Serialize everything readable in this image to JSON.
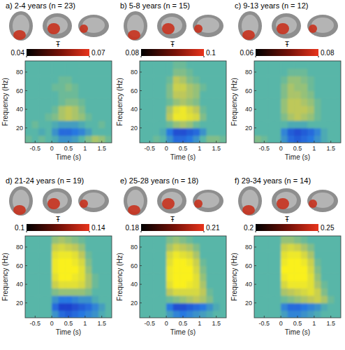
{
  "chart_data": [
    {
      "type": "heatmap",
      "title": "a) 2-4 years (n = 23)",
      "x_label": "Time (s)",
      "y_label": "Frequency (Hz)",
      "x": [
        -0.7,
        -0.5,
        -0.3,
        -0.1,
        0.1,
        0.3,
        0.5,
        0.7,
        0.9,
        1.1,
        1.3,
        1.5,
        1.7
      ],
      "y": [
        8,
        16,
        24,
        32,
        40,
        48,
        56,
        64,
        72,
        80,
        88
      ],
      "values": [
        [
          0.1,
          0,
          0.1,
          0,
          -0.1,
          -0.3,
          -0.3,
          -0.2,
          0,
          0.2,
          0.4,
          0.3,
          0.1
        ],
        [
          0,
          0,
          -0.1,
          0,
          -0.3,
          -0.6,
          -0.6,
          -0.5,
          -0.4,
          -0.2,
          0,
          0,
          0
        ],
        [
          0,
          0.1,
          0,
          0,
          -0.1,
          -0.2,
          -0.2,
          -0.2,
          -0.1,
          0,
          0,
          0.1,
          0
        ],
        [
          0,
          0,
          0,
          0.1,
          0.2,
          0.4,
          0.5,
          0.4,
          0.3,
          0.1,
          0,
          0,
          0
        ],
        [
          0,
          0,
          0,
          0,
          0.1,
          0.4,
          0.5,
          0.4,
          0.2,
          0,
          0,
          0,
          0
        ],
        [
          0,
          0,
          0,
          0,
          0,
          0.1,
          0.2,
          0.2,
          0.1,
          0,
          0,
          0,
          0
        ],
        [
          0,
          0,
          0,
          0,
          0,
          0.1,
          0.1,
          0.1,
          0,
          0,
          0,
          0,
          0
        ],
        [
          0,
          0,
          0,
          0,
          0.1,
          0.1,
          0.2,
          0.1,
          0,
          0,
          0,
          0,
          0
        ],
        [
          0,
          0,
          0,
          0,
          0,
          0.1,
          0.1,
          0,
          0,
          0,
          0,
          0,
          0
        ],
        [
          0,
          0,
          0,
          0,
          0,
          0,
          0,
          0,
          0,
          0,
          0,
          0,
          0
        ],
        [
          0,
          0,
          0,
          0,
          0,
          0,
          0,
          0,
          0,
          0,
          0,
          0,
          0
        ]
      ],
      "color_range": [
        -1,
        1
      ],
      "xlim": [
        -0.8,
        1.8
      ],
      "ylim": [
        4,
        92
      ],
      "xticks": [
        -0.5,
        0,
        0.5,
        1,
        1.5
      ],
      "yticks": [
        20,
        40,
        60,
        80
      ],
      "colorbar_label": "Ŧ",
      "colorbar_range": [
        0.04,
        0.07
      ],
      "colorbar_ticks": [
        0.04,
        0.07
      ]
    },
    {
      "type": "heatmap",
      "title": "b) 5-8 years (n = 15)",
      "x_label": "Time (s)",
      "y_label": "Frequency (Hz)",
      "x": [
        -0.7,
        -0.5,
        -0.3,
        -0.1,
        0.1,
        0.3,
        0.5,
        0.7,
        0.9,
        1.1,
        1.3,
        1.5,
        1.7
      ],
      "y": [
        8,
        16,
        24,
        32,
        40,
        48,
        56,
        64,
        72,
        80,
        88
      ],
      "values": [
        [
          0,
          0,
          0.1,
          0,
          -0.3,
          -0.6,
          -0.6,
          -0.5,
          -0.3,
          0,
          0.2,
          0.2,
          0.1
        ],
        [
          0,
          0,
          0,
          -0.1,
          -0.5,
          -0.8,
          -0.8,
          -0.7,
          -0.6,
          -0.3,
          0,
          0,
          0
        ],
        [
          0,
          0,
          0,
          0,
          0.1,
          0.3,
          0.4,
          0.3,
          0.1,
          0,
          0,
          0,
          0
        ],
        [
          0,
          0,
          0,
          0,
          0.5,
          0.9,
          0.9,
          0.8,
          0.7,
          0.2,
          0,
          0,
          0
        ],
        [
          0,
          0,
          0,
          0,
          0.4,
          0.8,
          0.9,
          0.7,
          0.5,
          0.1,
          0,
          0,
          0
        ],
        [
          0,
          0,
          0,
          0,
          0.1,
          0.3,
          0.4,
          0.3,
          0.2,
          0,
          0,
          0,
          0
        ],
        [
          0,
          0,
          0,
          0,
          0.2,
          0.5,
          0.5,
          0.4,
          0.3,
          0,
          0,
          0,
          0
        ],
        [
          0,
          0,
          0,
          0,
          0.2,
          0.6,
          0.6,
          0.4,
          0.3,
          0.1,
          0,
          0,
          0
        ],
        [
          0,
          0,
          0,
          0,
          0.1,
          0.5,
          0.4,
          0.2,
          0.1,
          0,
          0,
          0,
          0
        ],
        [
          0,
          0,
          0,
          0,
          0,
          0.2,
          0.2,
          0.1,
          0,
          0,
          0,
          0,
          0
        ],
        [
          0,
          0,
          0,
          0,
          0,
          0.1,
          0.1,
          0,
          0,
          0,
          0,
          0,
          0
        ]
      ],
      "color_range": [
        -1,
        1
      ],
      "xlim": [
        -0.8,
        1.8
      ],
      "ylim": [
        4,
        92
      ],
      "xticks": [
        -0.5,
        0,
        0.5,
        1,
        1.5
      ],
      "yticks": [
        20,
        40,
        60,
        80
      ],
      "colorbar_label": "Ŧ",
      "colorbar_range": [
        0.08,
        0.1
      ],
      "colorbar_ticks": [
        0.08,
        0.1
      ]
    },
    {
      "type": "heatmap",
      "title": "c) 9-13 years (n = 12)",
      "x_label": "Time (s)",
      "y_label": "Frequency (Hz)",
      "x": [
        -0.7,
        -0.5,
        -0.3,
        -0.1,
        0.1,
        0.3,
        0.5,
        0.7,
        0.9,
        1.1,
        1.3,
        1.5,
        1.7
      ],
      "y": [
        8,
        16,
        24,
        32,
        40,
        48,
        56,
        64,
        72,
        80,
        88
      ],
      "values": [
        [
          0.2,
          0.1,
          0,
          0,
          -0.3,
          -0.6,
          -0.7,
          -0.6,
          -0.5,
          -0.3,
          -0.1,
          0,
          0
        ],
        [
          0,
          0,
          0,
          0,
          -0.4,
          -0.7,
          -0.8,
          -0.7,
          -0.6,
          -0.4,
          -0.1,
          0,
          0
        ],
        [
          0,
          0,
          0,
          0,
          0,
          -0.1,
          -0.1,
          -0.1,
          0,
          0,
          0,
          0,
          0
        ],
        [
          0,
          0,
          0,
          0,
          0.2,
          0.4,
          0.5,
          0.4,
          0.3,
          0.1,
          0,
          0,
          0
        ],
        [
          0,
          0,
          0,
          0,
          0.3,
          0.5,
          0.5,
          0.5,
          0.4,
          0.1,
          0,
          0,
          0
        ],
        [
          0,
          0,
          0,
          0,
          0.3,
          0.5,
          0.5,
          0.4,
          0.3,
          0.1,
          0,
          0,
          0
        ],
        [
          0,
          0,
          0,
          0,
          0.2,
          0.4,
          0.4,
          0.3,
          0.2,
          0,
          0,
          0,
          0
        ],
        [
          0,
          0,
          0,
          0,
          0.2,
          0.4,
          0.3,
          0.3,
          0.1,
          0,
          0,
          0,
          0
        ],
        [
          0,
          0,
          0,
          0,
          0.1,
          0.3,
          0.3,
          0.2,
          0.1,
          0,
          0,
          0,
          0
        ],
        [
          0,
          0,
          0,
          0,
          0,
          0.1,
          0.1,
          0.1,
          0,
          0,
          0,
          0,
          0
        ],
        [
          0,
          0,
          0,
          0,
          0,
          0,
          0,
          0,
          0,
          0,
          0,
          0,
          0
        ]
      ],
      "color_range": [
        -1,
        1
      ],
      "xlim": [
        -0.8,
        1.8
      ],
      "ylim": [
        4,
        92
      ],
      "xticks": [
        -0.5,
        0,
        0.5,
        1,
        1.5
      ],
      "yticks": [
        20,
        40,
        60,
        80
      ],
      "colorbar_label": "Ŧ",
      "colorbar_range": [
        0.06,
        0.08
      ],
      "colorbar_ticks": [
        0.06,
        0.08
      ]
    },
    {
      "type": "heatmap",
      "title": "d) 21-24 years (n = 19)",
      "x_label": "Time (s)",
      "y_label": "Frequency (Hz)",
      "x": [
        -0.7,
        -0.5,
        -0.3,
        -0.1,
        0.1,
        0.3,
        0.5,
        0.7,
        0.9,
        1.1,
        1.3,
        1.5,
        1.7
      ],
      "y": [
        8,
        16,
        24,
        32,
        40,
        48,
        56,
        64,
        72,
        80,
        88
      ],
      "values": [
        [
          0,
          0,
          0,
          0,
          -0.3,
          -0.6,
          -0.7,
          -0.6,
          -0.5,
          -0.4,
          -0.3,
          -0.1,
          0
        ],
        [
          0,
          0,
          0,
          0,
          -0.6,
          -0.9,
          -0.9,
          -0.8,
          -0.7,
          -0.6,
          -0.4,
          -0.2,
          0
        ],
        [
          0,
          0,
          0,
          0,
          -0.3,
          -0.5,
          -0.5,
          -0.4,
          -0.3,
          -0.3,
          -0.1,
          0,
          0
        ],
        [
          0,
          0,
          0,
          0,
          0.2,
          0.3,
          0.3,
          0.3,
          0.3,
          0.2,
          0,
          0,
          0
        ],
        [
          0,
          0,
          0,
          0,
          0.6,
          0.8,
          0.8,
          0.8,
          0.7,
          0.4,
          0.1,
          0,
          0
        ],
        [
          0,
          0,
          0,
          0,
          0.8,
          1,
          1,
          0.9,
          0.8,
          0.4,
          0.1,
          0,
          0
        ],
        [
          0,
          0,
          0,
          0,
          0.9,
          1,
          1,
          1,
          0.8,
          0.3,
          0,
          0,
          0
        ],
        [
          0,
          0,
          0,
          0,
          0.9,
          1,
          1,
          0.9,
          0.7,
          0.2,
          0,
          0,
          0
        ],
        [
          0,
          0,
          0,
          0,
          0.8,
          0.9,
          0.9,
          0.8,
          0.5,
          0.1,
          0,
          0,
          0
        ],
        [
          0,
          0,
          0,
          0,
          0.6,
          0.7,
          0.6,
          0.5,
          0.3,
          0,
          0,
          0,
          0
        ],
        [
          0,
          0,
          0,
          0,
          0.3,
          0.4,
          0.3,
          0.2,
          0.1,
          0,
          0,
          0,
          0
        ]
      ],
      "color_range": [
        -1,
        1
      ],
      "xlim": [
        -0.8,
        1.8
      ],
      "ylim": [
        4,
        92
      ],
      "xticks": [
        -0.5,
        0,
        0.5,
        1,
        1.5
      ],
      "yticks": [
        20,
        40,
        60,
        80
      ],
      "colorbar_label": "Ŧ",
      "colorbar_range": [
        0.1,
        0.14
      ],
      "colorbar_ticks": [
        0.1,
        0.14
      ]
    },
    {
      "type": "heatmap",
      "title": "e) 25-28 years (n = 18)",
      "x_label": "Time (s)",
      "y_label": "Frequency (Hz)",
      "x": [
        -0.7,
        -0.5,
        -0.3,
        -0.1,
        0.1,
        0.3,
        0.5,
        0.7,
        0.9,
        1.1,
        1.3,
        1.5,
        1.7
      ],
      "y": [
        8,
        16,
        24,
        32,
        40,
        48,
        56,
        64,
        72,
        80,
        88
      ],
      "values": [
        [
          0,
          0,
          0,
          0,
          -0.2,
          -0.4,
          -0.5,
          -0.4,
          -0.3,
          -0.2,
          -0.1,
          0,
          0
        ],
        [
          0,
          0,
          0,
          0,
          -0.5,
          -0.8,
          -0.8,
          -0.7,
          -0.6,
          -0.5,
          -0.3,
          -0.1,
          0
        ],
        [
          0,
          0,
          0,
          0,
          0.1,
          0.2,
          0.3,
          0.4,
          0.5,
          0.4,
          0.2,
          0,
          0
        ],
        [
          0,
          0,
          0,
          0,
          0.5,
          0.7,
          0.7,
          0.7,
          0.7,
          0.5,
          0.1,
          0,
          0
        ],
        [
          0,
          0,
          0,
          0,
          0.8,
          1,
          1,
          0.9,
          0.8,
          0.4,
          0,
          0,
          0
        ],
        [
          0,
          0,
          0,
          0,
          0.9,
          1,
          1,
          1,
          0.8,
          0.3,
          0,
          0,
          0
        ],
        [
          0,
          0,
          0,
          0,
          0.9,
          1,
          1,
          1,
          0.7,
          0.2,
          0,
          0,
          0
        ],
        [
          0,
          0,
          0,
          0,
          0.8,
          1,
          1,
          0.9,
          0.6,
          0.1,
          0,
          0,
          0
        ],
        [
          0,
          0,
          0,
          0,
          0.7,
          0.9,
          0.8,
          0.7,
          0.4,
          0,
          0,
          0,
          0
        ],
        [
          0,
          0,
          0,
          0,
          0.4,
          0.6,
          0.5,
          0.4,
          0.2,
          0,
          0,
          0,
          0
        ],
        [
          0,
          0,
          0,
          0,
          0.2,
          0.3,
          0.2,
          0.1,
          0,
          0,
          0,
          0,
          0
        ]
      ],
      "color_range": [
        -1,
        1
      ],
      "xlim": [
        -0.8,
        1.8
      ],
      "ylim": [
        4,
        92
      ],
      "xticks": [
        -0.5,
        0,
        0.5,
        1,
        1.5
      ],
      "yticks": [
        20,
        40,
        60,
        80
      ],
      "colorbar_label": "Ŧ",
      "colorbar_range": [
        0.18,
        0.21
      ],
      "colorbar_ticks": [
        0.18,
        0.21
      ]
    },
    {
      "type": "heatmap",
      "title": "f) 29-34 years (n = 14)",
      "x_label": "Time (s)",
      "y_label": "Frequency (Hz)",
      "x": [
        -0.7,
        -0.5,
        -0.3,
        -0.1,
        0.1,
        0.3,
        0.5,
        0.7,
        0.9,
        1.1,
        1.3,
        1.5,
        1.7
      ],
      "y": [
        8,
        16,
        24,
        32,
        40,
        48,
        56,
        64,
        72,
        80,
        88
      ],
      "values": [
        [
          0,
          0,
          0,
          0,
          -0.2,
          -0.4,
          -0.4,
          -0.3,
          -0.2,
          -0.1,
          0,
          0,
          0
        ],
        [
          0,
          0,
          0,
          0,
          -0.4,
          -0.6,
          -0.6,
          -0.5,
          -0.4,
          -0.3,
          -0.1,
          0,
          0
        ],
        [
          0,
          0,
          0,
          0,
          0.1,
          0.2,
          0.3,
          0.4,
          0.5,
          0.6,
          0.4,
          0.1,
          0
        ],
        [
          0,
          0,
          0,
          0,
          0.4,
          0.5,
          0.6,
          0.7,
          0.8,
          0.6,
          0.2,
          0,
          0
        ],
        [
          0,
          0,
          0,
          0,
          0.7,
          0.9,
          0.9,
          0.9,
          0.8,
          0.4,
          0.1,
          0,
          0
        ],
        [
          0,
          0,
          0,
          0,
          0.9,
          1,
          1,
          1,
          0.8,
          0.3,
          0,
          0,
          0
        ],
        [
          0,
          0,
          0,
          0,
          1,
          1,
          1,
          1,
          0.7,
          0.2,
          0,
          0,
          0
        ],
        [
          0,
          0,
          0,
          0,
          0.9,
          1,
          1,
          0.9,
          0.6,
          0.1,
          0,
          0,
          0
        ],
        [
          0,
          0,
          0,
          0,
          0.8,
          0.9,
          0.9,
          0.7,
          0.4,
          0,
          0,
          0,
          0
        ],
        [
          0,
          0,
          0,
          0,
          0.6,
          0.7,
          0.6,
          0.4,
          0.2,
          0,
          0,
          0,
          0
        ],
        [
          0,
          0,
          0,
          0,
          0.3,
          0.3,
          0.2,
          0.1,
          0,
          0,
          0,
          0,
          0
        ]
      ],
      "color_range": [
        -1,
        1
      ],
      "xlim": [
        -0.8,
        1.8
      ],
      "ylim": [
        4,
        92
      ],
      "xticks": [
        -0.5,
        0,
        0.5,
        1,
        1.5
      ],
      "yticks": [
        20,
        40,
        60,
        80
      ],
      "colorbar_label": "Ŧ",
      "colorbar_range": [
        0.2,
        0.25
      ],
      "colorbar_ticks": [
        0.2,
        0.25
      ]
    }
  ]
}
